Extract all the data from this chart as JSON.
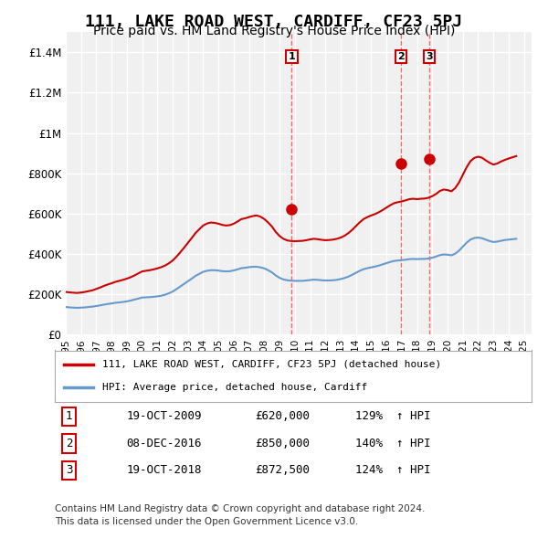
{
  "title": "111, LAKE ROAD WEST, CARDIFF, CF23 5PJ",
  "subtitle": "Price paid vs. HM Land Registry's House Price Index (HPI)",
  "title_fontsize": 13,
  "subtitle_fontsize": 10,
  "background_color": "#ffffff",
  "plot_bg_color": "#f0f0f0",
  "grid_color": "#ffffff",
  "ylim": [
    0,
    1500000
  ],
  "yticks": [
    0,
    200000,
    400000,
    600000,
    800000,
    1000000,
    1200000,
    1400000
  ],
  "ytick_labels": [
    "£0",
    "£200K",
    "£400K",
    "£600K",
    "£800K",
    "£1M",
    "£1.2M",
    "£1.4M"
  ],
  "xlabel_fontsize": 8,
  "ylabel_fontsize": 9,
  "red_line_color": "#cc0000",
  "blue_line_color": "#6699cc",
  "transaction_color": "#cc0000",
  "dashed_line_color": "#ff6666",
  "transactions": [
    {
      "label": "1",
      "date": "19-OCT-2009",
      "year": 2009.8,
      "price": 620000,
      "pct": "129%",
      "dir": "↑"
    },
    {
      "label": "2",
      "date": "08-DEC-2016",
      "year": 2016.93,
      "price": 850000,
      "pct": "140%",
      "dir": "↑"
    },
    {
      "label": "3",
      "date": "19-OCT-2018",
      "year": 2018.8,
      "price": 872500,
      "pct": "124%",
      "dir": "↑"
    }
  ],
  "legend_entry1": "111, LAKE ROAD WEST, CARDIFF, CF23 5PJ (detached house)",
  "legend_entry2": "HPI: Average price, detached house, Cardiff",
  "footer1": "Contains HM Land Registry data © Crown copyright and database right 2024.",
  "footer2": "This data is licensed under the Open Government Licence v3.0.",
  "hpi_data_x": [
    1995.0,
    1995.25,
    1995.5,
    1995.75,
    1996.0,
    1996.25,
    1996.5,
    1996.75,
    1997.0,
    1997.25,
    1997.5,
    1997.75,
    1998.0,
    1998.25,
    1998.5,
    1998.75,
    1999.0,
    1999.25,
    1999.5,
    1999.75,
    2000.0,
    2000.25,
    2000.5,
    2000.75,
    2001.0,
    2001.25,
    2001.5,
    2001.75,
    2002.0,
    2002.25,
    2002.5,
    2002.75,
    2003.0,
    2003.25,
    2003.5,
    2003.75,
    2004.0,
    2004.25,
    2004.5,
    2004.75,
    2005.0,
    2005.25,
    2005.5,
    2005.75,
    2006.0,
    2006.25,
    2006.5,
    2006.75,
    2007.0,
    2007.25,
    2007.5,
    2007.75,
    2008.0,
    2008.25,
    2008.5,
    2008.75,
    2009.0,
    2009.25,
    2009.5,
    2009.75,
    2010.0,
    2010.25,
    2010.5,
    2010.75,
    2011.0,
    2011.25,
    2011.5,
    2011.75,
    2012.0,
    2012.25,
    2012.5,
    2012.75,
    2013.0,
    2013.25,
    2013.5,
    2013.75,
    2014.0,
    2014.25,
    2014.5,
    2014.75,
    2015.0,
    2015.25,
    2015.5,
    2015.75,
    2016.0,
    2016.25,
    2016.5,
    2016.75,
    2017.0,
    2017.25,
    2017.5,
    2017.75,
    2018.0,
    2018.25,
    2018.5,
    2018.75,
    2019.0,
    2019.25,
    2019.5,
    2019.75,
    2020.0,
    2020.25,
    2020.5,
    2020.75,
    2021.0,
    2021.25,
    2021.5,
    2021.75,
    2022.0,
    2022.25,
    2022.5,
    2022.75,
    2023.0,
    2023.25,
    2023.5,
    2023.75,
    2024.0,
    2024.25,
    2024.5
  ],
  "hpi_data_y": [
    135000,
    133000,
    132000,
    131000,
    132000,
    133000,
    135000,
    137000,
    140000,
    143000,
    147000,
    150000,
    153000,
    156000,
    158000,
    160000,
    163000,
    167000,
    172000,
    177000,
    182000,
    183000,
    184000,
    186000,
    188000,
    191000,
    196000,
    203000,
    212000,
    224000,
    237000,
    250000,
    263000,
    276000,
    290000,
    300000,
    310000,
    315000,
    318000,
    318000,
    316000,
    313000,
    312000,
    313000,
    317000,
    322000,
    328000,
    330000,
    333000,
    335000,
    335000,
    332000,
    327000,
    318000,
    307000,
    292000,
    280000,
    272000,
    268000,
    266000,
    265000,
    265000,
    265000,
    267000,
    269000,
    271000,
    270000,
    268000,
    267000,
    267000,
    268000,
    270000,
    274000,
    279000,
    286000,
    295000,
    305000,
    315000,
    323000,
    328000,
    332000,
    336000,
    341000,
    347000,
    353000,
    359000,
    364000,
    366000,
    368000,
    370000,
    373000,
    374000,
    373000,
    374000,
    374000,
    376000,
    380000,
    386000,
    393000,
    396000,
    395000,
    392000,
    400000,
    415000,
    435000,
    455000,
    470000,
    478000,
    480000,
    477000,
    470000,
    463000,
    458000,
    460000,
    464000,
    468000,
    470000,
    472000,
    474000
  ],
  "red_data_x": [
    1995.0,
    1995.25,
    1995.5,
    1995.75,
    1996.0,
    1996.25,
    1996.5,
    1996.75,
    1997.0,
    1997.25,
    1997.5,
    1997.75,
    1998.0,
    1998.25,
    1998.5,
    1998.75,
    1999.0,
    1999.25,
    1999.5,
    1999.75,
    2000.0,
    2000.25,
    2000.5,
    2000.75,
    2001.0,
    2001.25,
    2001.5,
    2001.75,
    2002.0,
    2002.25,
    2002.5,
    2002.75,
    2003.0,
    2003.25,
    2003.5,
    2003.75,
    2004.0,
    2004.25,
    2004.5,
    2004.75,
    2005.0,
    2005.25,
    2005.5,
    2005.75,
    2006.0,
    2006.25,
    2006.5,
    2006.75,
    2007.0,
    2007.25,
    2007.5,
    2007.75,
    2008.0,
    2008.25,
    2008.5,
    2008.75,
    2009.0,
    2009.25,
    2009.5,
    2009.75,
    2010.0,
    2010.25,
    2010.5,
    2010.75,
    2011.0,
    2011.25,
    2011.5,
    2011.75,
    2012.0,
    2012.25,
    2012.5,
    2012.75,
    2013.0,
    2013.25,
    2013.5,
    2013.75,
    2014.0,
    2014.25,
    2014.5,
    2014.75,
    2015.0,
    2015.25,
    2015.5,
    2015.75,
    2016.0,
    2016.25,
    2016.5,
    2016.75,
    2017.0,
    2017.25,
    2017.5,
    2017.75,
    2018.0,
    2018.25,
    2018.5,
    2018.75,
    2019.0,
    2019.25,
    2019.5,
    2019.75,
    2020.0,
    2020.25,
    2020.5,
    2020.75,
    2021.0,
    2021.25,
    2021.5,
    2021.75,
    2022.0,
    2022.25,
    2022.5,
    2022.75,
    2023.0,
    2023.25,
    2023.5,
    2023.75,
    2024.0,
    2024.25,
    2024.5
  ],
  "red_data_y": [
    210000,
    208000,
    206000,
    205000,
    207000,
    210000,
    214000,
    218000,
    225000,
    232000,
    240000,
    247000,
    253000,
    260000,
    265000,
    270000,
    276000,
    283000,
    292000,
    302000,
    312000,
    315000,
    318000,
    322000,
    327000,
    333000,
    341000,
    352000,
    366000,
    385000,
    407000,
    430000,
    454000,
    478000,
    503000,
    522000,
    540000,
    550000,
    555000,
    553000,
    549000,
    543000,
    540000,
    542000,
    549000,
    560000,
    572000,
    576000,
    582000,
    587000,
    590000,
    584000,
    572000,
    555000,
    535000,
    508000,
    488000,
    474000,
    466000,
    463000,
    462000,
    463000,
    464000,
    467000,
    471000,
    474000,
    472000,
    469000,
    467000,
    468000,
    470000,
    474000,
    480000,
    489000,
    502000,
    518000,
    537000,
    556000,
    572000,
    582000,
    590000,
    597000,
    606000,
    617000,
    629000,
    641000,
    651000,
    656000,
    660000,
    665000,
    671000,
    673000,
    671000,
    673000,
    674000,
    678000,
    686000,
    697000,
    712000,
    719000,
    716000,
    710000,
    726000,
    754000,
    792000,
    830000,
    860000,
    876000,
    882000,
    877000,
    864000,
    852000,
    843000,
    848000,
    858000,
    866000,
    873000,
    879000,
    885000
  ]
}
